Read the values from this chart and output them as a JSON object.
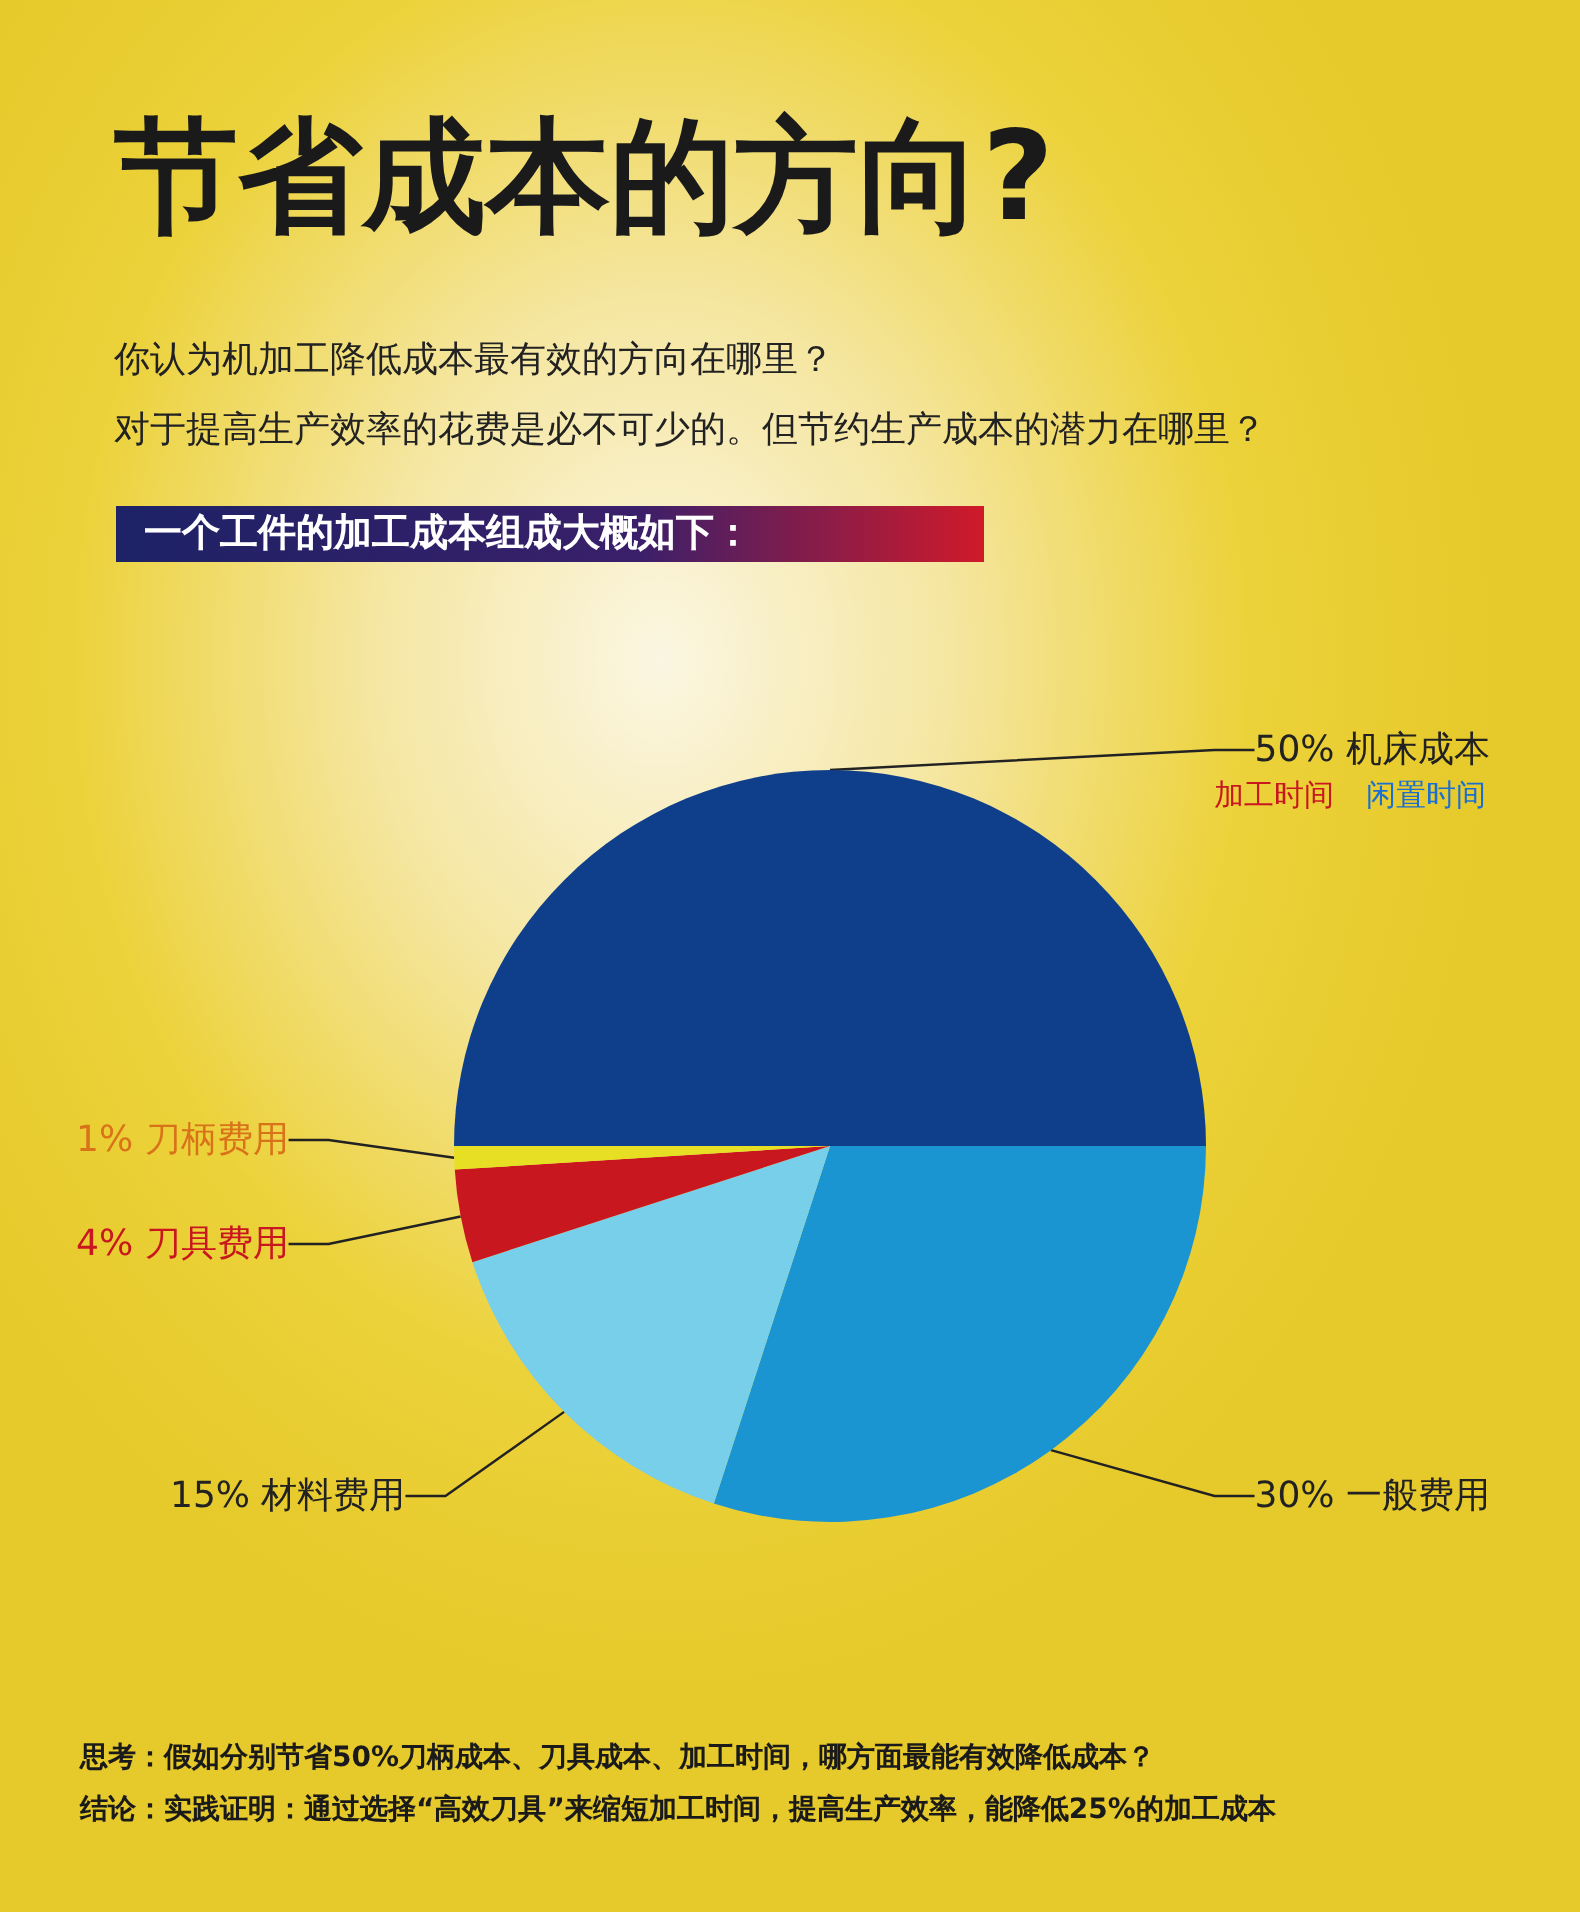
{
  "chart_data": {
    "type": "pie",
    "title": "节省成本的方向?",
    "subtitle": "你认为机加工降低成本最有效的方向在哪里？",
    "categories": [
      "50% 机床成本",
      "30% 一般费用",
      "15% 材料费用",
      "4% 刀具费用",
      "1% 刀柄费用"
    ],
    "values": [
      50,
      30,
      15,
      4,
      1
    ],
    "colors": [
      "#0f3f8a",
      "#1b95d1",
      "#78cfe9",
      "#c8171f",
      "#e6df24"
    ],
    "annotations": [
      "对于提高生产效率的花费是必不可少的。但节约生产成本的潜力在哪里？",
      "一个工件的加工成本组成大概如下：",
      "加工时间",
      "闲置时间",
      "思考：假如分别节省50%刀柄成本、刀具成本、加工时间，哪方面最能有效降低成本？",
      "结论：实践证明：通过选择“高效刀具”来缩短加工时间，提高生产效率，能降低25%的加工成本"
    ]
  }
}
